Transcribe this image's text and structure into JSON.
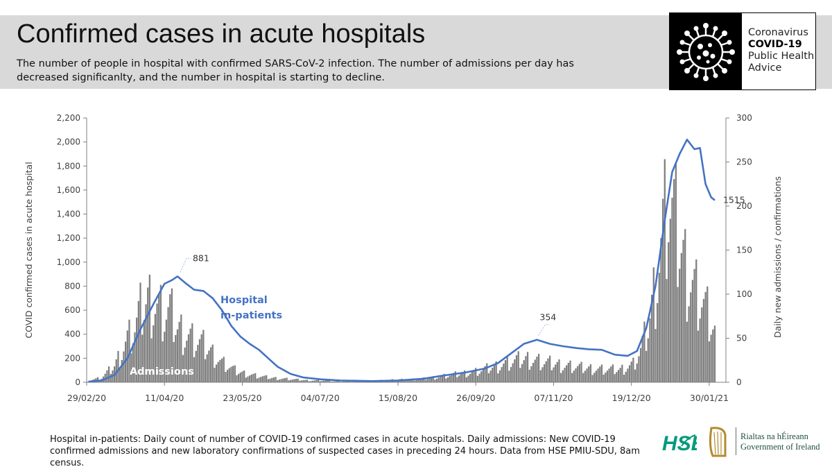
{
  "header": {
    "title": "Confirmed cases in acute hospitals",
    "subtitle": "The number of people in hospital with confirmed SARS-CoV-2 infection. The number of admissions per day has decreased significanlty, and the number in hospital is starting to decline."
  },
  "badge": {
    "logo_icon": "coronavirus-icon",
    "line1": "Coronavirus",
    "line2": "COVID-19",
    "line3": "Public Health",
    "line4": "Advice"
  },
  "footer": {
    "note": "Hospital in-patients: Daily count of number of COVID-19 confirmed cases in acute hospitals. Daily admissions: New COVID-19 confirmed admissions and new laboratory confirmations of suspected cases in preceding 24 hours. Data from HSE PMIU-SDU, 8am census.",
    "hse_logo_text": "HSE",
    "gov_line1": "Rialtas na hÉireann",
    "gov_line2": "Government of Ireland"
  },
  "chart_data": {
    "type": "bar+line",
    "title": "",
    "xlabel": "",
    "ylabel_left": "COVID confirmed cases in acute hospital",
    "ylabel_right": "Daily new admissions / confirmations",
    "ylim_left": [
      0,
      2200
    ],
    "ylim_right": [
      0,
      300
    ],
    "yticks_left": [
      "0",
      "200",
      "400",
      "600",
      "800",
      "1,000",
      "1,200",
      "1,400",
      "1,600",
      "1,800",
      "2,000",
      "2,200"
    ],
    "yticks_right": [
      "0",
      "50",
      "100",
      "150",
      "200",
      "250",
      "300"
    ],
    "xlim": [
      "29/02/20",
      "08/02/21"
    ],
    "xticks": [
      "29/02/20",
      "11/04/20",
      "23/05/20",
      "04/07/20",
      "15/08/20",
      "26/09/20",
      "07/11/20",
      "19/12/20",
      "30/01/21"
    ],
    "grid": false,
    "colors": {
      "line": "#4472c4",
      "bars": "#7f7f7f",
      "axis": "#7f7f7f",
      "series_label": "#4472c4"
    },
    "series": [
      {
        "name": "Hospital in-patients",
        "label_line1": "Hospital",
        "label_line2": "in-patients",
        "axis": "left",
        "kind": "line",
        "points": [
          [
            "01/03/20",
            5
          ],
          [
            "08/03/20",
            15
          ],
          [
            "15/03/20",
            60
          ],
          [
            "22/03/20",
            200
          ],
          [
            "29/03/20",
            440
          ],
          [
            "05/04/20",
            650
          ],
          [
            "11/04/20",
            820
          ],
          [
            "15/04/20",
            850
          ],
          [
            "18/04/20",
            881
          ],
          [
            "22/04/20",
            830
          ],
          [
            "27/04/20",
            770
          ],
          [
            "02/05/20",
            760
          ],
          [
            "07/05/20",
            700
          ],
          [
            "12/05/20",
            600
          ],
          [
            "17/05/20",
            470
          ],
          [
            "22/05/20",
            380
          ],
          [
            "27/05/20",
            320
          ],
          [
            "01/06/20",
            270
          ],
          [
            "06/06/20",
            200
          ],
          [
            "11/06/20",
            130
          ],
          [
            "18/06/20",
            70
          ],
          [
            "25/06/20",
            40
          ],
          [
            "04/07/20",
            25
          ],
          [
            "15/07/20",
            15
          ],
          [
            "01/08/20",
            10
          ],
          [
            "15/08/20",
            15
          ],
          [
            "29/08/20",
            30
          ],
          [
            "08/09/20",
            55
          ],
          [
            "20/09/20",
            80
          ],
          [
            "01/10/20",
            115
          ],
          [
            "08/10/20",
            160
          ],
          [
            "15/10/20",
            240
          ],
          [
            "22/10/20",
            320
          ],
          [
            "29/10/20",
            354
          ],
          [
            "05/11/20",
            320
          ],
          [
            "12/11/20",
            300
          ],
          [
            "19/11/20",
            285
          ],
          [
            "26/11/20",
            275
          ],
          [
            "03/12/20",
            270
          ],
          [
            "10/12/20",
            230
          ],
          [
            "17/12/20",
            220
          ],
          [
            "22/12/20",
            260
          ],
          [
            "27/12/20",
            450
          ],
          [
            "01/01/21",
            800
          ],
          [
            "06/01/21",
            1350
          ],
          [
            "10/01/21",
            1750
          ],
          [
            "14/01/21",
            1900
          ],
          [
            "18/01/21",
            2020
          ],
          [
            "22/01/21",
            1940
          ],
          [
            "25/01/21",
            1950
          ],
          [
            "28/01/21",
            1650
          ],
          [
            "31/01/21",
            1540
          ],
          [
            "02/02/21",
            1515
          ]
        ]
      },
      {
        "name": "Admissions",
        "axis": "right",
        "kind": "bar",
        "points": [
          [
            "01/03/20",
            2
          ],
          [
            "08/03/20",
            5
          ],
          [
            "15/03/20",
            18
          ],
          [
            "22/03/20",
            48
          ],
          [
            "26/03/20",
            60
          ],
          [
            "29/03/20",
            78
          ],
          [
            "02/04/20",
            92
          ],
          [
            "05/04/20",
            90
          ],
          [
            "08/04/20",
            82
          ],
          [
            "11/04/20",
            74
          ],
          [
            "14/04/20",
            78
          ],
          [
            "18/04/20",
            60
          ],
          [
            "22/04/20",
            55
          ],
          [
            "26/04/20",
            48
          ],
          [
            "30/04/20",
            44
          ],
          [
            "04/05/20",
            38
          ],
          [
            "08/05/20",
            30
          ],
          [
            "12/05/20",
            22
          ],
          [
            "16/05/20",
            17
          ],
          [
            "20/05/20",
            12
          ],
          [
            "24/05/20",
            10
          ],
          [
            "31/05/20",
            7
          ],
          [
            "07/06/20",
            5
          ],
          [
            "14/06/20",
            4
          ],
          [
            "21/06/20",
            3
          ],
          [
            "28/06/20",
            2
          ],
          [
            "05/07/20",
            2
          ],
          [
            "12/07/20",
            1
          ],
          [
            "19/07/20",
            1
          ],
          [
            "26/07/20",
            1
          ],
          [
            "02/08/20",
            2
          ],
          [
            "09/08/20",
            2
          ],
          [
            "16/08/20",
            3
          ],
          [
            "23/08/20",
            3
          ],
          [
            "30/08/20",
            4
          ],
          [
            "06/09/20",
            6
          ],
          [
            "13/09/20",
            8
          ],
          [
            "20/09/20",
            10
          ],
          [
            "27/09/20",
            12
          ],
          [
            "04/10/20",
            16
          ],
          [
            "11/10/20",
            20
          ],
          [
            "18/10/20",
            24
          ],
          [
            "25/10/20",
            26
          ],
          [
            "01/11/20",
            22
          ],
          [
            "08/11/20",
            20
          ],
          [
            "15/11/20",
            18
          ],
          [
            "22/11/20",
            16
          ],
          [
            "29/11/20",
            15
          ],
          [
            "06/12/20",
            14
          ],
          [
            "13/12/20",
            14
          ],
          [
            "20/12/20",
            20
          ],
          [
            "24/12/20",
            35
          ],
          [
            "28/12/20",
            60
          ],
          [
            "01/01/21",
            110
          ],
          [
            "05/01/21",
            170
          ],
          [
            "08/01/21",
            205
          ],
          [
            "11/01/21",
            180
          ],
          [
            "14/01/21",
            155
          ],
          [
            "17/01/21",
            130
          ],
          [
            "20/01/21",
            115
          ],
          [
            "23/01/21",
            100
          ],
          [
            "26/01/21",
            90
          ],
          [
            "29/01/21",
            75
          ],
          [
            "01/02/21",
            60
          ],
          [
            "02/02/21",
            55
          ]
        ]
      }
    ],
    "annotations": [
      {
        "text": "881",
        "date": "18/04/20",
        "value": 881,
        "axis": "left"
      },
      {
        "text": "354",
        "date": "29/10/20",
        "value": 354,
        "axis": "left"
      },
      {
        "text": "1515",
        "date": "02/02/21",
        "value": 1515,
        "axis": "left"
      },
      {
        "text": "Admissions",
        "series": "Admissions"
      }
    ]
  }
}
